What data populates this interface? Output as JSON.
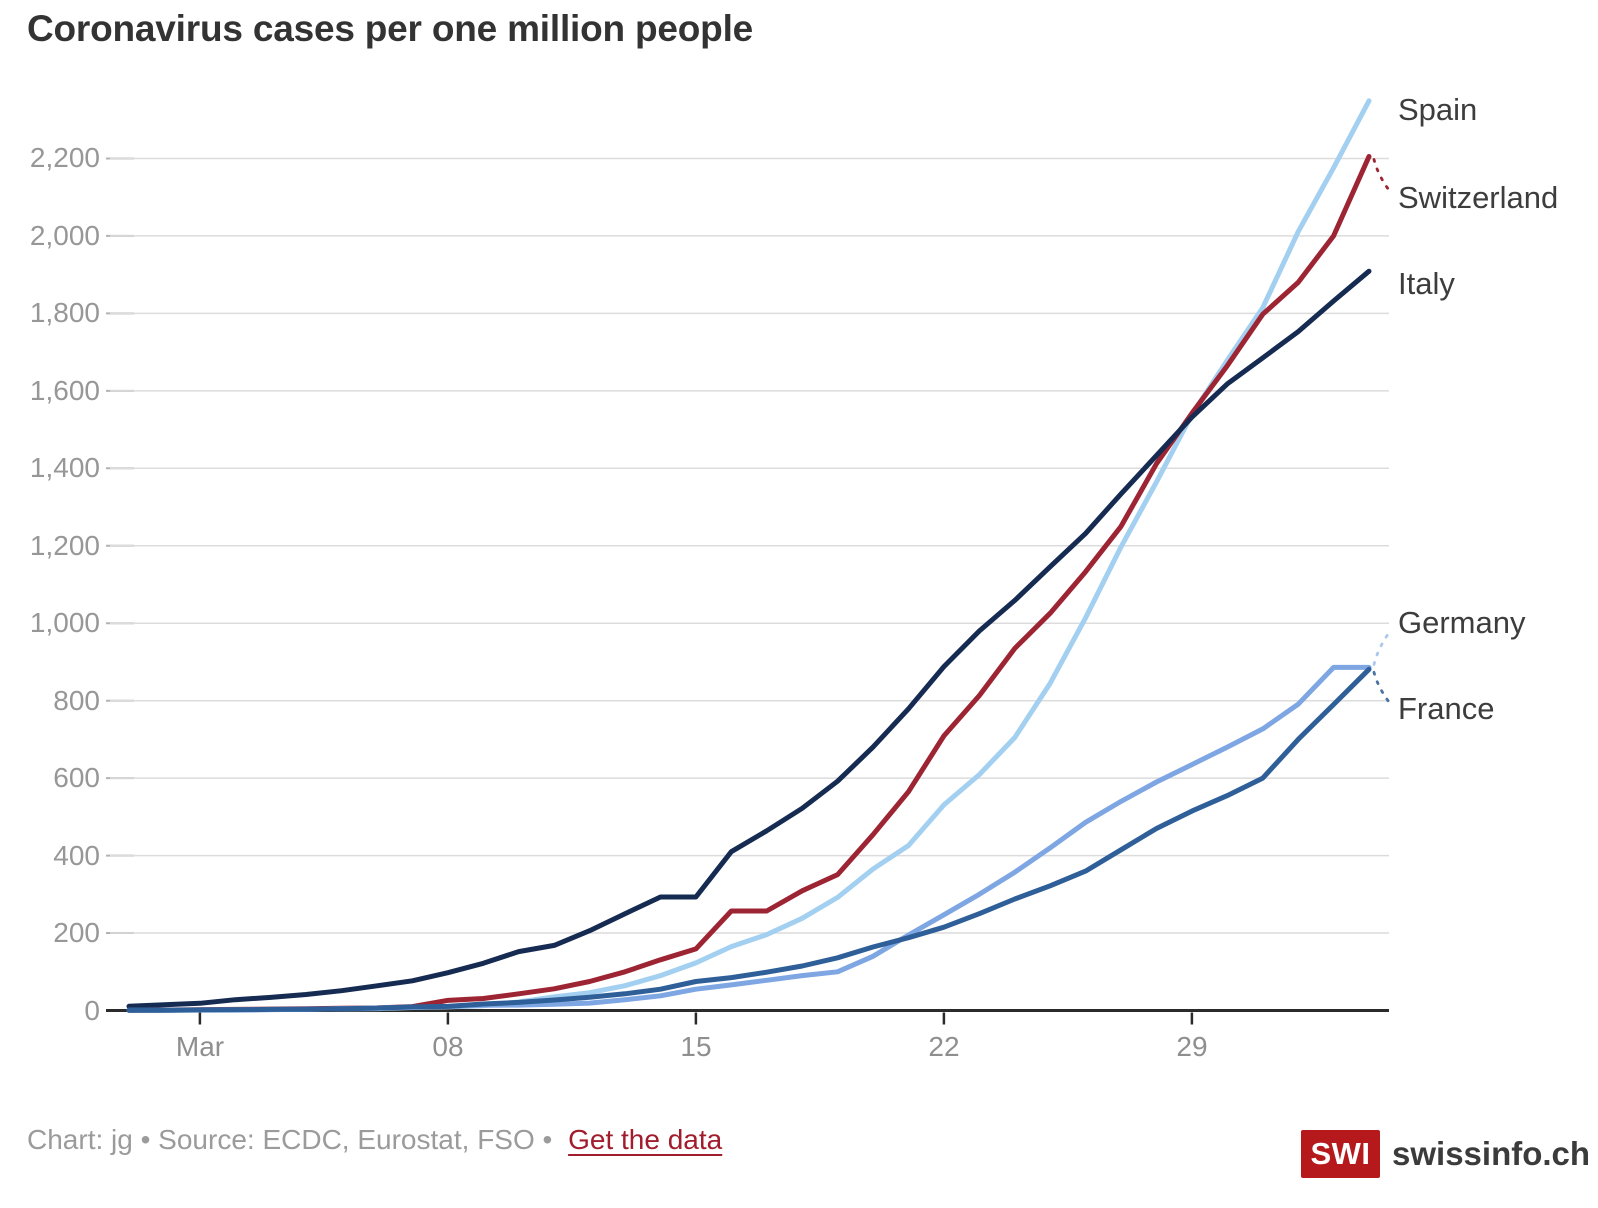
{
  "chart_data": {
    "type": "line",
    "title": "Coronavirus cases per one million people",
    "x_axis": {
      "tick_labels": [
        "Mar",
        "08",
        "15",
        "22",
        "29"
      ],
      "tick_point_indices": [
        2,
        9,
        16,
        23,
        30
      ],
      "points_per_series": 36
    },
    "y_axis": {
      "tick_labels": [
        "0",
        "200",
        "400",
        "600",
        "800",
        "1,000",
        "1,200",
        "1,400",
        "1,600",
        "1,800",
        "2,000",
        "2,200"
      ],
      "tick_values": [
        0,
        200,
        400,
        600,
        800,
        1000,
        1200,
        1400,
        1600,
        1800,
        2000,
        2200
      ],
      "ylim": [
        0,
        2430
      ],
      "grid": true
    },
    "legend_position": "right-edge-labels",
    "series": [
      {
        "name": "Spain",
        "color": "#a3d0f1",
        "values": [
          0.7,
          0.9,
          1,
          1,
          2.4,
          3.2,
          4.2,
          5,
          7.8,
          9.2,
          12.5,
          22,
          35,
          46,
          64,
          90,
          123,
          165,
          196,
          238,
          292,
          365,
          426,
          531,
          609,
          705,
          845,
          1014,
          1197,
          1365,
          1539,
          1679,
          1815,
          2011,
          2176,
          2349
        ]
      },
      {
        "name": "Switzerland",
        "color": "#9d2433",
        "values": [
          0.9,
          1.2,
          2.1,
          2.8,
          3.5,
          4.3,
          5.7,
          6.8,
          10,
          26,
          31,
          43,
          56,
          75,
          100,
          131,
          159,
          257,
          257,
          309,
          351,
          454,
          565,
          709,
          813,
          935,
          1026,
          1133,
          1250,
          1412,
          1542,
          1665,
          1798,
          1880,
          2000,
          2205
        ]
      },
      {
        "name": "Italy",
        "color": "#162b52",
        "values": [
          10.8,
          14.7,
          18.7,
          28,
          33.7,
          41.4,
          51.2,
          63.9,
          76.8,
          97.5,
          122,
          152,
          168,
          206,
          250,
          293,
          293,
          410,
          464,
          522,
          592,
          680,
          779,
          888,
          980,
          1059,
          1146,
          1232,
          1334,
          1433,
          1532,
          1618,
          1685,
          1753,
          1832,
          1909
        ]
      },
      {
        "name": "Germany",
        "color": "#7ea6e2",
        "values": [
          0.6,
          0.8,
          1.4,
          1.8,
          2.3,
          3.2,
          4.8,
          6.4,
          8.2,
          10.2,
          13.4,
          14,
          16,
          19,
          28,
          38,
          55,
          66,
          78,
          90,
          100,
          140,
          195,
          247,
          300,
          357,
          420,
          486,
          540,
          590,
          635,
          680,
          727,
          791,
          886,
          886
        ]
      },
      {
        "name": "France",
        "color": "#2f5f98",
        "values": [
          0.6,
          0.9,
          1.5,
          1.9,
          2.9,
          3.2,
          4.3,
          6.3,
          9.2,
          10.7,
          16.8,
          21,
          27,
          34,
          43,
          55,
          75,
          85,
          99,
          115,
          136,
          164,
          188,
          215,
          250,
          288,
          322,
          360,
          415,
          470,
          515,
          555,
          600,
          700,
          790,
          881
        ]
      }
    ]
  },
  "footer": {
    "credit": "Chart: jg • Source: ECDC, Eurostat, FSO •",
    "link_label": "Get the data"
  },
  "logo": {
    "badge": "SWI",
    "brand": "swissinfo.ch",
    "badge_color": "#b5191c"
  },
  "colors": {
    "gridline": "#dcdcdc",
    "grid_stub": "#b3b3b3",
    "axis": "#2b2b2b",
    "title_text": "#333333",
    "tick_text": "#979797",
    "series_label_text": "#3d3d3d",
    "footer_text": "#9b9b9b",
    "link": "#a11d2d"
  }
}
